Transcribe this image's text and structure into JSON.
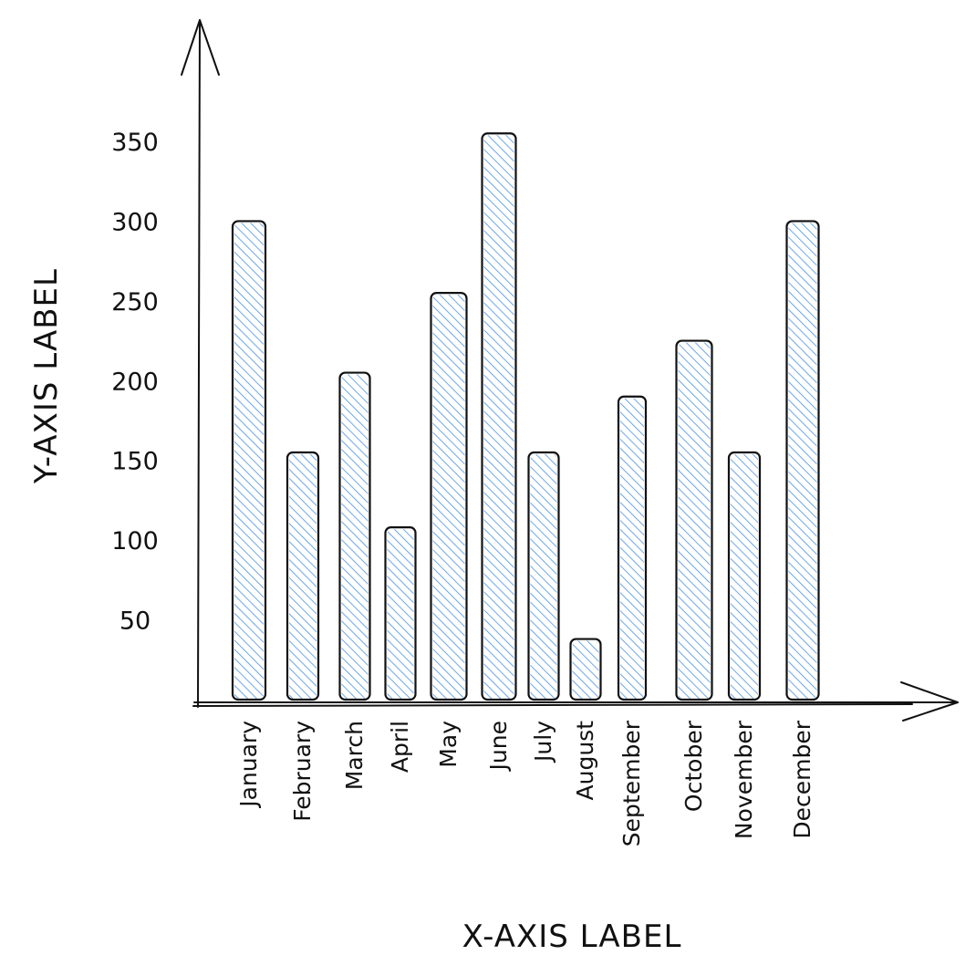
{
  "chart_data": {
    "type": "bar",
    "title": "",
    "xlabel": "X-AXIS LABEL",
    "ylabel": "Y-AXIS LABEL",
    "categories": [
      "January",
      "February",
      "March",
      "April",
      "May",
      "June",
      "July",
      "August",
      "September",
      "October",
      "November",
      "December"
    ],
    "values": [
      300,
      155,
      205,
      108,
      255,
      355,
      155,
      38,
      190,
      225,
      155,
      300
    ],
    "y_ticks": [
      50,
      100,
      150,
      200,
      250,
      300,
      350
    ],
    "ylim": [
      0,
      350
    ],
    "grid": false,
    "legend": "none",
    "colors": {
      "bar_fill": "#4a90e2",
      "stroke": "#111111",
      "background": "#ffffff"
    }
  }
}
